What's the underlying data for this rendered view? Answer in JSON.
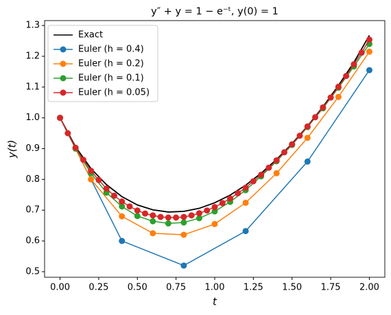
{
  "chart_data": {
    "type": "line",
    "title": "y″ + y = 1 − e⁻ᵗ, y(0) = 1",
    "xlabel": "t",
    "ylabel": "y(t)",
    "xlim": [
      -0.1,
      2.1
    ],
    "ylim": [
      0.482,
      1.316
    ],
    "xticks": [
      {
        "value": 0,
        "label": "0.00"
      },
      {
        "value": 0.25,
        "label": "0.25"
      },
      {
        "value": 0.5,
        "label": "0.50"
      },
      {
        "value": 0.75,
        "label": "0.75"
      },
      {
        "value": 1,
        "label": "1.00"
      },
      {
        "value": 1.25,
        "label": "1.25"
      },
      {
        "value": 1.5,
        "label": "1.50"
      },
      {
        "value": 1.75,
        "label": "1.75"
      },
      {
        "value": 2,
        "label": "2.00"
      }
    ],
    "yticks": [
      0.5,
      0.6,
      0.7,
      0.8,
      0.9,
      {
        "value": 1,
        "label": "1.0"
      },
      1.1,
      1.2,
      1.3
    ],
    "legend": "upper left",
    "series": [
      {
        "name": "Exact",
        "color": "#000000",
        "marker": false,
        "x": [
          0,
          0.1,
          0.2,
          0.3,
          0.4,
          0.5,
          0.6,
          0.7,
          0.8,
          0.9,
          1,
          1.1,
          1.2,
          1.3,
          1.4,
          1.5,
          1.6,
          1.7,
          1.8,
          1.9,
          2
        ],
        "values": [
          1.0,
          0.906,
          0.835,
          0.783,
          0.744,
          0.717,
          0.701,
          0.694,
          0.696,
          0.706,
          0.724,
          0.749,
          0.781,
          0.82,
          0.865,
          0.916,
          0.973,
          1.036,
          1.105,
          1.18,
          1.268
        ]
      },
      {
        "name": "Euler (h = 0.4)",
        "color": "#1f77b4",
        "marker": true,
        "x": [
          0,
          0.4,
          0.8,
          1.2,
          1.6,
          2
        ],
        "values": [
          1.0,
          0.6,
          0.52,
          0.632,
          0.858,
          1.155
        ]
      },
      {
        "name": "Euler (h = 0.2)",
        "color": "#ff7f0e",
        "marker": true,
        "x": [
          0,
          0.2,
          0.4,
          0.6,
          0.8,
          1,
          1.2,
          1.4,
          1.6,
          1.8,
          2
        ],
        "values": [
          1.0,
          0.8,
          0.68,
          0.625,
          0.62,
          0.655,
          0.724,
          0.82,
          0.935,
          1.068,
          1.215
        ]
      },
      {
        "name": "Euler (h = 0.1)",
        "color": "#2ca02c",
        "marker": true,
        "x": [
          0,
          0.1,
          0.2,
          0.3,
          0.4,
          0.5,
          0.6,
          0.7,
          0.8,
          0.9,
          1,
          1.1,
          1.2,
          1.3,
          1.4,
          1.5,
          1.6,
          1.7,
          1.8,
          1.9,
          2
        ],
        "values": [
          1.0,
          0.9,
          0.82,
          0.757,
          0.712,
          0.681,
          0.664,
          0.657,
          0.66,
          0.674,
          0.696,
          0.727,
          0.765,
          0.81,
          0.859,
          0.912,
          0.97,
          1.031,
          1.098,
          1.167,
          1.24
        ]
      },
      {
        "name": "Euler (h = 0.05)",
        "color": "#d62728",
        "marker": true,
        "x": [
          0,
          0.05,
          0.1,
          0.15,
          0.2,
          0.25,
          0.3,
          0.35,
          0.4,
          0.45,
          0.5,
          0.55,
          0.6,
          0.65,
          0.7,
          0.75,
          0.8,
          0.85,
          0.9,
          0.95,
          1,
          1.05,
          1.1,
          1.15,
          1.2,
          1.25,
          1.3,
          1.35,
          1.4,
          1.45,
          1.5,
          1.55,
          1.6,
          1.65,
          1.7,
          1.75,
          1.8,
          1.85,
          1.9,
          1.95,
          2
        ],
        "values": [
          1.0,
          0.95,
          0.903,
          0.864,
          0.828,
          0.798,
          0.77,
          0.747,
          0.728,
          0.712,
          0.699,
          0.689,
          0.683,
          0.678,
          0.676,
          0.676,
          0.678,
          0.683,
          0.69,
          0.699,
          0.71,
          0.723,
          0.738,
          0.755,
          0.773,
          0.794,
          0.815,
          0.838,
          0.862,
          0.888,
          0.914,
          0.942,
          0.972,
          1.002,
          1.034,
          1.066,
          1.101,
          1.136,
          1.174,
          1.212,
          1.254
        ]
      }
    ]
  }
}
